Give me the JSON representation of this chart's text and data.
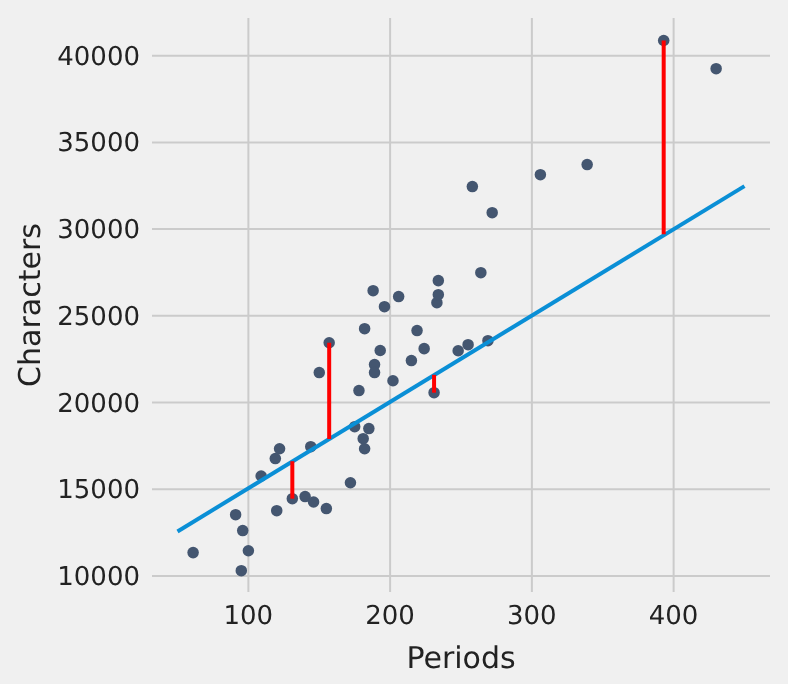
{
  "chart_data": {
    "type": "scatter",
    "xlabel": "Periods",
    "ylabel": "Characters",
    "xlim": [
      32,
      468
    ],
    "ylim": [
      9080,
      42170
    ],
    "xticks": [
      100,
      200,
      300,
      400
    ],
    "yticks": [
      10000,
      15000,
      20000,
      25000,
      30000,
      35000,
      40000
    ],
    "grid": true,
    "series": [
      {
        "marker": "circle",
        "color": "#445670",
        "x": [
          61,
          91,
          96,
          100,
          95,
          109,
          120,
          119,
          122,
          131,
          140,
          146,
          144,
          150,
          155,
          157,
          172,
          175,
          178,
          181,
          182,
          185,
          182,
          188,
          189,
          189,
          193,
          196,
          202,
          206,
          215,
          219,
          224,
          231,
          233,
          234,
          234,
          248,
          255,
          258,
          264,
          269,
          272,
          306,
          339,
          393,
          430
        ],
        "values": [
          11350,
          13540,
          12620,
          11460,
          10310,
          15770,
          13770,
          16770,
          17340,
          14460,
          14580,
          14270,
          17460,
          21730,
          13890,
          23450,
          15380,
          18610,
          20690,
          17920,
          17340,
          18500,
          24260,
          26450,
          22190,
          21730,
          23000,
          25530,
          21260,
          26110,
          22420,
          24150,
          23110,
          20570,
          25760,
          26220,
          27030,
          22990,
          23340,
          32450,
          27490,
          23570,
          30950,
          33140,
          33720,
          40870,
          39250
        ]
      },
      {
        "type": "line",
        "color": "#0a8fd6",
        "x": [
          50,
          450
        ],
        "values": [
          12570,
          32480
        ]
      },
      {
        "type": "line",
        "color": "#ff0000",
        "x": [
          131,
          131
        ],
        "values": [
          14460,
          16620
        ]
      },
      {
        "type": "line",
        "color": "#ff0000",
        "x": [
          157,
          157
        ],
        "values": [
          23450,
          17900
        ]
      },
      {
        "type": "line",
        "color": "#ff0000",
        "x": [
          231,
          231
        ],
        "values": [
          20570,
          21600
        ]
      },
      {
        "type": "line",
        "color": "#ff0000",
        "x": [
          393,
          393
        ],
        "values": [
          40870,
          29700
        ]
      }
    ]
  }
}
